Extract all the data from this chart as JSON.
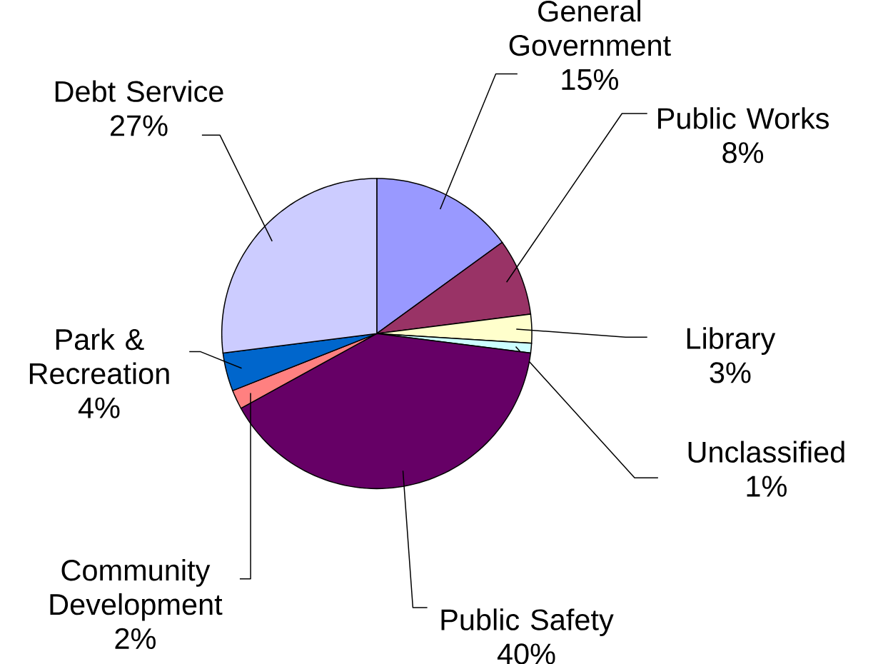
{
  "chart_data": {
    "type": "pie",
    "categories": [
      "General Government",
      "Public Works",
      "Library",
      "Unclassified",
      "Public Safety",
      "Community Development",
      "Park & Recreation",
      "Debt Service"
    ],
    "values": [
      15,
      8,
      3,
      1,
      40,
      2,
      4,
      27
    ],
    "colors": [
      "#9999ff",
      "#993366",
      "#ffffcc",
      "#ccffff",
      "#660066",
      "#ff8080",
      "#0066cc",
      "#ccccff"
    ],
    "value_labels": [
      "15%",
      "8%",
      "3%",
      "1%",
      "40%",
      "2%",
      "4%",
      "27%"
    ]
  }
}
